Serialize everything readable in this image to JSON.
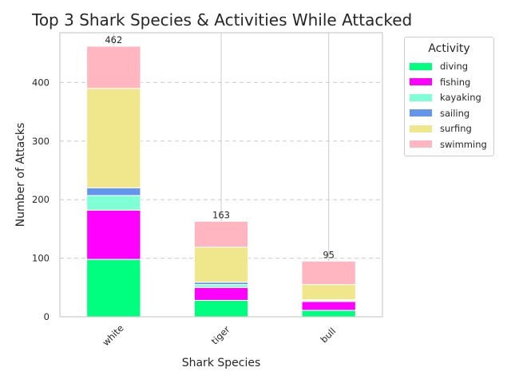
{
  "chart_data": {
    "type": "bar",
    "stacked": true,
    "title": "Top 3 Shark Species & Activities While Attacked",
    "xlabel": "Shark Species",
    "ylabel": "Number of Attacks",
    "categories": [
      "white",
      "tiger",
      "bull"
    ],
    "ylim": [
      0,
      485
    ],
    "yticks": [
      0,
      100,
      200,
      300,
      400
    ],
    "grid": "y-dashed",
    "legend_title": "Activity",
    "legend_position": "outside-right-top",
    "series": [
      {
        "name": "diving",
        "color": "#00FF7F",
        "values": [
          98,
          28,
          11
        ]
      },
      {
        "name": "fishing",
        "color": "#FF00FF",
        "values": [
          84,
          22,
          15
        ]
      },
      {
        "name": "kayaking",
        "color": "#7FFFD4",
        "values": [
          25,
          5,
          2
        ]
      },
      {
        "name": "sailing",
        "color": "#6495ED",
        "values": [
          13,
          4,
          1
        ]
      },
      {
        "name": "surfing",
        "color": "#F0E68C",
        "values": [
          170,
          60,
          26
        ]
      },
      {
        "name": "swimming",
        "color": "#FFB6C1",
        "values": [
          72,
          44,
          40
        ]
      }
    ],
    "totals": [
      462,
      163,
      95
    ]
  }
}
